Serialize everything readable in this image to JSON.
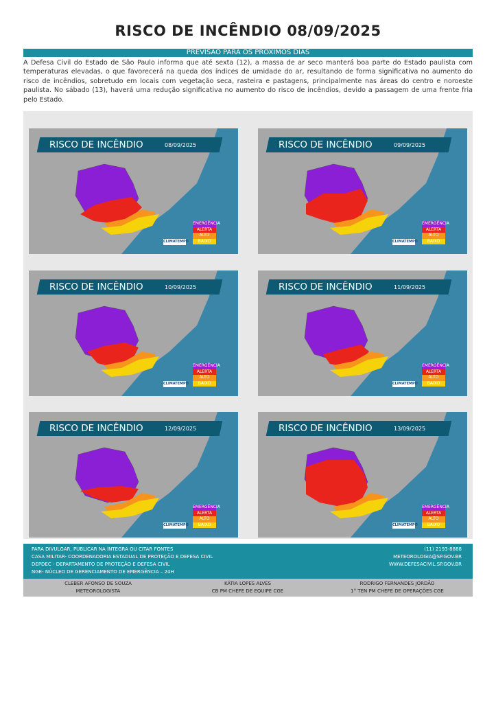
{
  "header": {
    "title": "RISCO DE INCÊNDIO 08/09/2025",
    "subtitle": "PREVISÃO PARA OS PRÓXIMOS DIAS",
    "text": "A Defesa Civil do Estado de São Paulo informa que até sexta (12), a massa de ar seco manterá boa parte do Estado paulista com temperaturas elevadas, o que favorecerá na queda dos índices de umidade do ar, resultando de forma significativa no aumento do risco de incêndios, sobretudo em locais com vegetação seca, rasteira e pastagens, principalmente nas áreas do centro e noroeste paulista. No sábado (13), haverá uma redução significativa no aumento do risco de incêndios, devido a passagem de uma frente fria pelo Estado."
  },
  "maps": [
    {
      "title": "RISCO DE INCÊNDIO",
      "date": "08/09/2025",
      "legend": [
        "EMERGÊNCIA",
        "ALERTA",
        "ALTO",
        "BAIXO"
      ],
      "logo": "CLIMATEMPO"
    },
    {
      "title": "RISCO DE INCÊNDIO",
      "date": "09/09/2025",
      "legend": [
        "EMERGÊNCIA",
        "ALERTA",
        "ALTO",
        "BAIXO"
      ],
      "logo": "CLIMATEMPO"
    },
    {
      "title": "RISCO DE INCÊNDIO",
      "date": "10/09/2025",
      "legend": [
        "EMERGÊNCIA",
        "ALERTA",
        "ALTO",
        "BAIXO"
      ],
      "logo": "CLIMATEMPO"
    },
    {
      "title": "RISCO DE INCÊNDIO",
      "date": "11/09/2025",
      "legend": [
        "EMERGÊNCIA",
        "ALERTA",
        "ALTO",
        "BAIXO"
      ],
      "logo": "CLIMATEMPO"
    },
    {
      "title": "RISCO DE INCÊNDIO",
      "date": "12/09/2025",
      "legend": [
        "EMERGÊNCIA",
        "ALERTA",
        "ALTO",
        "BAIXO"
      ],
      "logo": "CLIMATEMPO"
    },
    {
      "title": "RISCO DE INCÊNDIO",
      "date": "13/09/2025",
      "legend": [
        "EMERGÊNCIA",
        "ALERTA",
        "ALTO",
        "BAIXO"
      ],
      "logo": "CLIMATEMPO"
    }
  ],
  "footer": {
    "left": [
      "PARA DIVULGAR, PUBLICAR NA ÍNTEGRA OU CITAR FONTES",
      "CASA MILITAR- COORDENADORIA ESTADUAL DE PROTEÇÃO E DEFESA CIVIL",
      "DEPDEC - DEPARTAMENTO DE PROTEÇÃO E DEFESA CIVIL",
      "NGE- NÚCLEO DE GERENCIAMENTO DE EMERGÊNCIA – 24H"
    ],
    "right": [
      "(11) 2193-8888",
      "METEOROLOGIA@SP.GOV.BR",
      "WWW.DEFESACIVIL.SP.GOV.BR"
    ]
  },
  "signatures": [
    {
      "name": "CLEBER AFONSO DE SOUZA",
      "role": "METEOROLOGISTA"
    },
    {
      "name": "KÁTIA LOPES ALVES",
      "role": "CB PM CHEFE DE EQUIPE CGE"
    },
    {
      "name": "RODRIGO FERNANDES JORDÃO",
      "role": "1° TEN PM CHEFE DE OPERAÇÕES CGE"
    }
  ]
}
